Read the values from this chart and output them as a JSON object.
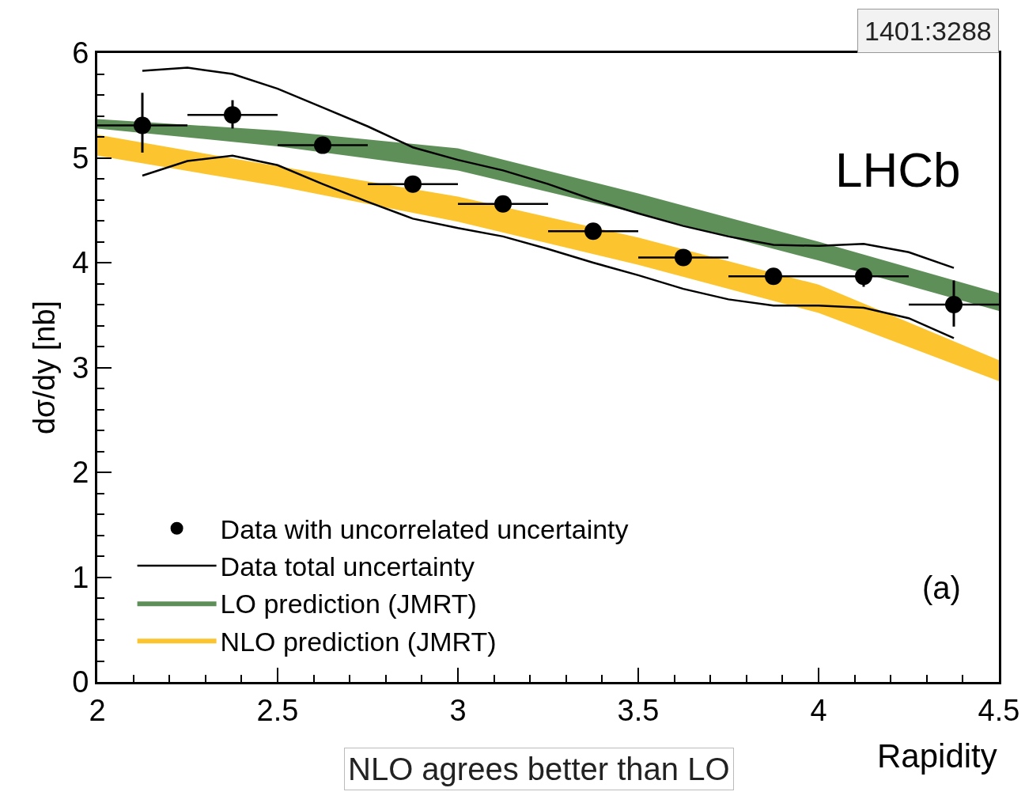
{
  "chart_data": {
    "type": "scatter",
    "xlabel": "Rapidity",
    "ylabel": "dσ/dy [nb]",
    "annotations": [
      "LHCb",
      "(a)",
      "1401:3288",
      "NLO agrees better than LO"
    ],
    "xlim": [
      2,
      4.5
    ],
    "xticks": [
      2,
      2.5,
      3,
      3.5,
      4,
      4.5
    ],
    "ylim": [
      0,
      6
    ],
    "yticks": [
      0,
      1,
      2,
      3,
      4,
      5,
      6
    ],
    "grid": false,
    "legend": "bottom left",
    "marker": "circle",
    "series": [
      {
        "name": "NLO prediction (JMRT)",
        "type": "area",
        "color": "#fcc52f",
        "x": [
          2,
          2.5,
          3,
          3.5,
          4,
          4.5
        ],
        "values": [
          null,
          null,
          null,
          null,
          null,
          null
        ],
        "upper": [
          5.22,
          4.92,
          4.63,
          4.24,
          3.79,
          3.07
        ],
        "lower": [
          5.02,
          4.73,
          4.39,
          3.98,
          3.52,
          2.87
        ]
      },
      {
        "name": "LO prediction (JMRT)",
        "type": "area",
        "color": "#5f8f58",
        "x": [
          2,
          2.5,
          3,
          3.5,
          4,
          4.5
        ],
        "values": [
          null,
          null,
          null,
          null,
          null,
          null
        ],
        "upper": [
          5.37,
          5.26,
          5.09,
          4.66,
          4.2,
          3.71
        ],
        "lower": [
          5.28,
          5.11,
          4.88,
          4.47,
          4.02,
          3.54
        ]
      },
      {
        "type": "line",
        "marker": "none",
        "color": "#000000",
        "x": [
          2.125,
          2.25,
          2.375,
          2.5,
          2.625,
          2.75,
          2.875,
          3.0,
          3.125,
          3.25,
          3.375,
          3.5,
          3.625,
          3.75,
          3.875,
          4.0,
          4.125,
          4.25,
          4.375
        ],
        "values": [
          4.83,
          4.97,
          5.02,
          4.93,
          4.75,
          4.58,
          4.42,
          4.33,
          4.25,
          4.13,
          4.0,
          3.88,
          3.75,
          3.65,
          3.59,
          3.59,
          3.57,
          3.47,
          3.28
        ]
      },
      {
        "name": "Data total uncertainty",
        "type": "line",
        "marker": "none",
        "color": "#000000",
        "x": [
          2.125,
          2.25,
          2.375,
          2.5,
          2.625,
          2.75,
          2.875,
          3.0,
          3.125,
          3.25,
          3.375,
          3.5,
          3.625,
          3.75,
          3.875,
          4.0,
          4.125,
          4.25,
          4.375
        ],
        "values": [
          5.83,
          5.86,
          5.8,
          5.66,
          5.48,
          5.3,
          5.1,
          4.98,
          4.88,
          4.75,
          4.6,
          4.47,
          4.35,
          4.25,
          4.17,
          4.16,
          4.18,
          4.1,
          3.95
        ]
      },
      {
        "name": "Data with uncorrelated uncertainty",
        "color": "#000000",
        "x": [
          2.125,
          2.375,
          2.625,
          2.875,
          3.125,
          3.375,
          3.625,
          3.875,
          4.125,
          4.375
        ],
        "values": [
          5.31,
          5.41,
          5.12,
          4.75,
          4.56,
          4.3,
          4.05,
          3.87,
          3.87,
          3.6
        ],
        "errors": [
          [
            5.05,
            5.62
          ],
          [
            5.28,
            5.55
          ],
          0.03,
          0.03,
          0.03,
          0.03,
          0.03,
          0.03,
          [
            3.77,
            3.93
          ],
          [
            3.39,
            3.83
          ]
        ],
        "xerrors": [
          0.125,
          0.125,
          0.125,
          0.125,
          0.125,
          0.125,
          0.125,
          0.125,
          0.125,
          0.125
        ]
      }
    ]
  }
}
